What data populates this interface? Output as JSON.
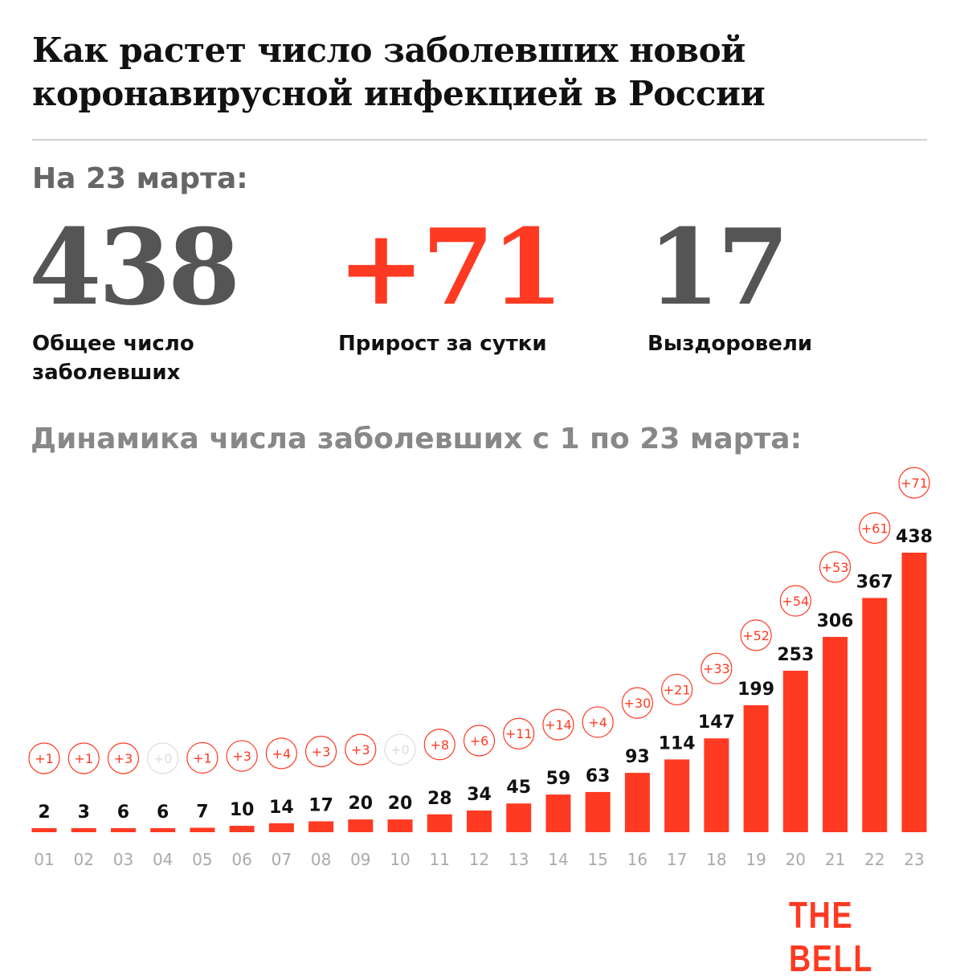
{
  "header": {
    "title": "Как растет число заболевших новой коронавирусной инфекцией в России",
    "as_of": "На 23 марта:"
  },
  "stats": [
    {
      "value": "438",
      "label": "Общее число заболевших"
    },
    {
      "value": "+71",
      "label": "Прирост за сутки"
    },
    {
      "value": "17",
      "label": "Выздоровели"
    }
  ],
  "colors": {
    "accent": "#ff3a22",
    "muted": "#666666",
    "zero_circle": "#dddddd"
  },
  "chart_data": {
    "type": "bar",
    "title": "Динамика числа  заболевших с 1 по 23 марта:",
    "categories": [
      "01",
      "02",
      "03",
      "04",
      "05",
      "06",
      "07",
      "08",
      "09",
      "10",
      "11",
      "12",
      "13",
      "14",
      "15",
      "16",
      "17",
      "18",
      "19",
      "20",
      "21",
      "22",
      "23"
    ],
    "values": [
      2,
      3,
      6,
      6,
      7,
      10,
      14,
      17,
      20,
      20,
      28,
      34,
      45,
      59,
      63,
      93,
      114,
      147,
      199,
      253,
      306,
      367,
      438
    ],
    "daily_increase": [
      "+1",
      "+1",
      "+3",
      "+0",
      "+1",
      "+3",
      "+4",
      "+3",
      "+3",
      "+0",
      "+8",
      "+6",
      "+11",
      "+14",
      "+4",
      "+30",
      "+21",
      "+33",
      "+52",
      "+54",
      "+53",
      "+61",
      "+71"
    ],
    "xlabel": "",
    "ylabel": "",
    "grid": false
  },
  "footer": {
    "logo": "THE BELL"
  }
}
